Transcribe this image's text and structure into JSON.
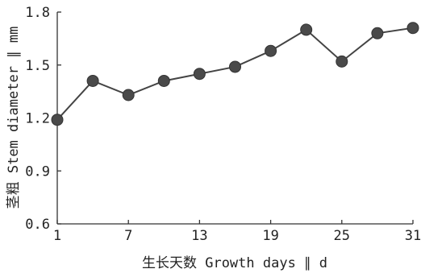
{
  "chart_data": {
    "type": "line",
    "title": "",
    "xlabel": "生长天数 Growth days ∥ d",
    "ylabel": "茎粗 Stem diameter ∥ mm",
    "xlim": [
      1,
      31
    ],
    "ylim": [
      0.6,
      1.8
    ],
    "xticks": [
      "1",
      "7",
      "13",
      "19",
      "25",
      "31"
    ],
    "yticks": [
      "0.6",
      "0.9",
      "1.2",
      "1.5",
      "1.8"
    ],
    "grid": false,
    "x": [
      1,
      4,
      7,
      10,
      13,
      16,
      19,
      22,
      25,
      28,
      31
    ],
    "series": [
      {
        "values": [
          1.19,
          1.41,
          1.33,
          1.41,
          1.45,
          1.49,
          1.58,
          1.7,
          1.52,
          1.68,
          1.71
        ]
      }
    ]
  }
}
